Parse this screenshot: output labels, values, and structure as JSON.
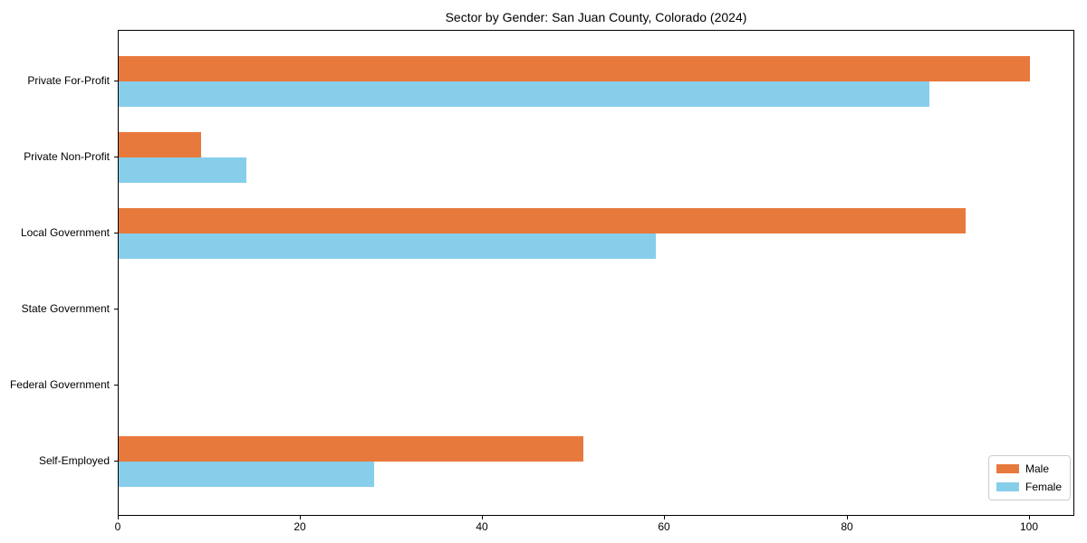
{
  "title": "Sector by Gender: San Juan County, Colorado (2024)",
  "colors": {
    "male": "#e8793d",
    "female": "#87ceeb",
    "axis": "#000000",
    "legend_border": "#cccccc"
  },
  "legend": {
    "entries": [
      {
        "label": "Male",
        "color": "#e8793d"
      },
      {
        "label": "Female",
        "color": "#87ceeb"
      }
    ]
  },
  "chart_data": {
    "type": "bar",
    "orientation": "horizontal",
    "title": "Sector by Gender: San Juan County, Colorado (2024)",
    "categories": [
      "Private For-Profit",
      "Private Non-Profit",
      "Local Government",
      "State Government",
      "Federal Government",
      "Self-Employed"
    ],
    "series": [
      {
        "name": "Male",
        "color": "#e8793d",
        "values": [
          100,
          9,
          93,
          0,
          0,
          51
        ]
      },
      {
        "name": "Female",
        "color": "#87ceeb",
        "values": [
          89,
          14,
          59,
          0,
          0,
          28
        ]
      }
    ],
    "xlabel": "",
    "ylabel": "",
    "xlim": [
      0,
      105
    ],
    "xticks": [
      0,
      20,
      40,
      60,
      80,
      100
    ],
    "grid": false,
    "legend_position": "lower right"
  }
}
